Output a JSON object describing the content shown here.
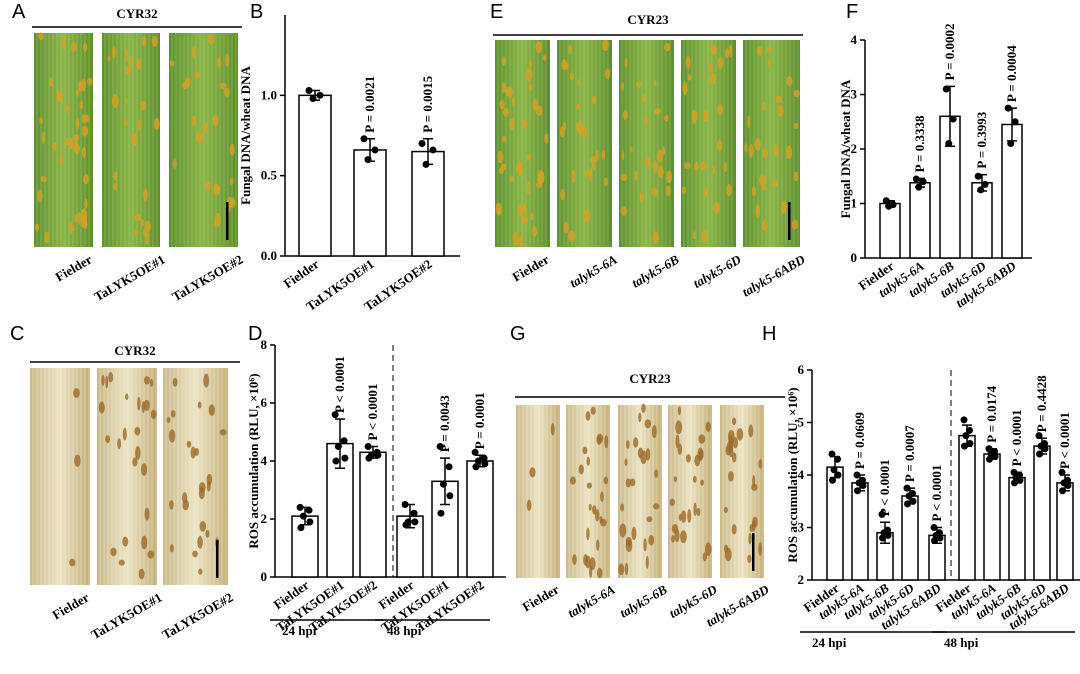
{
  "image_panels": [
    {
      "letter": "A",
      "title": "CYR32",
      "labels": [
        "Fielder",
        "TaLYK5OE#1",
        "TaLYK5OE#2"
      ]
    },
    {
      "letter": "C",
      "title": "CYR32",
      "labels": [
        "Fielder",
        "TaLYK5OE#1",
        "TaLYK5OE#2"
      ]
    },
    {
      "letter": "E",
      "title": "CYR23",
      "labels": [
        "Fielder",
        "talyk5-6A",
        "talyk5-6B",
        "talyk5-6D",
        "talyk5-6ABD"
      ]
    },
    {
      "letter": "G",
      "title": "CYR23",
      "labels": [
        "Fielder",
        "talyk5-6A",
        "talyk5-6B",
        "talyk5-6D",
        "talyk5-6ABD"
      ]
    }
  ],
  "chart_data": [
    {
      "type": "bar",
      "letter": "B",
      "y_label": "Fungal DNA/wheat DNA",
      "color": "#ffffff",
      "categories": [
        "Fielder",
        "TaLYK5OE#1",
        "TaLYK5OE#2"
      ],
      "values": [
        1.0,
        0.66,
        0.65
      ],
      "errors": [
        0.03,
        0.07,
        0.08
      ],
      "points": [
        [
          1.03,
          1.0,
          0.98
        ],
        [
          0.73,
          0.66,
          0.6
        ],
        [
          0.7,
          0.66,
          0.57
        ]
      ],
      "p_labels": [
        null,
        "P = 0.0021",
        "P = 0.0015"
      ],
      "ylim": [
        0,
        1.5
      ],
      "yticks": [
        {
          "value": 0,
          "label": "0.0"
        },
        {
          "value": 0.5,
          "label": "0.5"
        },
        {
          "value": 1,
          "label": "1.0"
        }
      ]
    },
    {
      "type": "bar",
      "letter": "D",
      "y_label": "ROS accumulation (RLU, ×10⁶)",
      "color": "#ffffff",
      "categories": [
        "Fielder",
        "TaLYK5OE#1",
        "TaLYK5OE#2",
        "Fielder",
        "TaLYK5OE#1",
        "TaLYK5OE#2"
      ],
      "values": [
        2.1,
        4.6,
        4.3,
        2.1,
        3.3,
        4.0
      ],
      "errors": [
        0.3,
        0.85,
        0.2,
        0.4,
        0.8,
        0.2
      ],
      "points": [
        [
          2.4,
          2.3,
          2.1,
          1.9,
          1.7
        ],
        [
          5.6,
          4.7,
          4.5,
          4.1,
          4.0
        ],
        [
          4.5,
          4.3,
          4.2,
          4.2,
          4.1
        ],
        [
          2.5,
          2.2,
          1.9,
          1.9,
          1.8
        ],
        [
          4.5,
          3.8,
          3.2,
          2.8,
          2.2
        ],
        [
          4.3,
          4.1,
          4.0,
          3.9,
          3.8
        ]
      ],
      "p_labels": [
        null,
        "P < 0.0001",
        "P < 0.0001",
        null,
        "P = 0.0043",
        "P = 0.0001"
      ],
      "group_labels": [
        "24 hpi",
        "48 hpi"
      ],
      "ylim": [
        0,
        8
      ],
      "yticks": [
        0,
        2,
        4,
        6,
        8
      ]
    },
    {
      "type": "bar",
      "letter": "F",
      "y_label": "Fungal DNA/wheat DNA",
      "color": "#ffffff",
      "categories": [
        "Fielder",
        "talyk5-6A",
        "talyk5-6B",
        "talyk5-6D",
        "talyk5-6ABD"
      ],
      "values": [
        1.0,
        1.38,
        2.6,
        1.38,
        2.45
      ],
      "errors": [
        0.05,
        0.08,
        0.55,
        0.15,
        0.3
      ],
      "points": [
        [
          1.05,
          0.98,
          0.95
        ],
        [
          1.45,
          1.4,
          1.3
        ],
        [
          3.1,
          2.55,
          2.1
        ],
        [
          1.5,
          1.35,
          1.25
        ],
        [
          2.75,
          2.5,
          2.1
        ]
      ],
      "p_labels": [
        null,
        "P = 0.3338",
        "P = 0.0002",
        "P = 0.3993",
        "P = 0.0004"
      ],
      "ylim": [
        0,
        4
      ],
      "yticks": [
        0,
        1,
        2,
        3,
        4
      ]
    },
    {
      "type": "bar",
      "letter": "H",
      "y_label": "ROS accumulation (RLU, ×10⁶)",
      "color": "#ffffff",
      "categories": [
        "Fielder",
        "talyk5-6A",
        "talyk5-6B",
        "talyk5-6D",
        "talyk5-6ABD",
        "Fielder",
        "talyk5-6A",
        "talyk5-6B",
        "talyk5-6D",
        "talyk5-6ABD"
      ],
      "values": [
        4.15,
        3.85,
        2.9,
        3.6,
        2.85,
        4.75,
        4.4,
        3.95,
        4.55,
        3.85
      ],
      "errors": [
        0.2,
        0.15,
        0.2,
        0.15,
        0.15,
        0.2,
        0.1,
        0.1,
        0.15,
        0.15
      ],
      "points": [
        [
          4.4,
          4.3,
          4.1,
          4.0,
          3.9
        ],
        [
          4.0,
          3.9,
          3.85,
          3.8,
          3.7
        ],
        [
          3.25,
          2.95,
          2.9,
          2.85,
          2.8
        ],
        [
          3.75,
          3.65,
          3.6,
          3.5,
          3.45
        ],
        [
          3.0,
          2.9,
          2.85,
          2.8,
          2.75
        ],
        [
          5.05,
          4.85,
          4.75,
          4.6,
          4.55
        ],
        [
          4.5,
          4.45,
          4.4,
          4.35,
          4.3
        ],
        [
          4.05,
          4.0,
          3.95,
          3.9,
          3.85
        ],
        [
          4.75,
          4.6,
          4.55,
          4.5,
          4.4
        ],
        [
          4.05,
          3.9,
          3.85,
          3.8,
          3.7
        ]
      ],
      "p_labels": [
        null,
        "P = 0.0609",
        "P < 0.0001",
        "P = 0.0007",
        "P < 0.0001",
        null,
        "P = 0.0174",
        "P < 0.0001",
        "P = 0.4428",
        "P < 0.0001"
      ],
      "group_labels": [
        "24 hpi",
        "48 hpi"
      ],
      "ylim": [
        2,
        6
      ],
      "yticks": [
        2,
        3,
        4,
        5,
        6
      ]
    }
  ]
}
